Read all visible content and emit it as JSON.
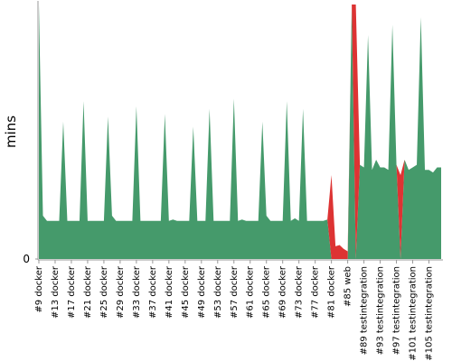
{
  "chart_data": {
    "type": "area",
    "stacked": true,
    "ylabel": "mins",
    "categories": [
      "#9 docker",
      null,
      null,
      null,
      "#13 docker",
      null,
      null,
      null,
      "#17 docker",
      null,
      null,
      null,
      "#21 docker",
      null,
      null,
      null,
      "#25 docker",
      null,
      null,
      null,
      "#29 docker",
      null,
      null,
      null,
      "#33 docker",
      null,
      null,
      null,
      "#37 docker",
      null,
      null,
      null,
      "#41 docker",
      null,
      null,
      null,
      "#45 docker",
      null,
      null,
      null,
      "#49 docker",
      null,
      null,
      null,
      "#53 docker",
      null,
      null,
      null,
      "#57 docker",
      null,
      null,
      null,
      "#61 docker",
      null,
      null,
      null,
      "#65 docker",
      null,
      null,
      null,
      "#69 docker",
      null,
      null,
      null,
      "#73 docker",
      null,
      null,
      null,
      "#77 docker",
      null,
      null,
      null,
      "#81 docker",
      null,
      null,
      null,
      "#85 web",
      null,
      null,
      null,
      "#89 testintegration",
      null,
      null,
      null,
      "#93 testintegration",
      null,
      null,
      null,
      "#97 testintegration",
      null,
      null,
      null,
      "#101 testintegration",
      null,
      null,
      null,
      "#105 testintegration",
      null,
      null,
      null
    ],
    "series": [
      {
        "color": "#459a6b",
        "values": [
          10,
          1.7,
          1.5,
          1.5,
          1.5,
          1.5,
          5.4,
          1.5,
          1.5,
          1.5,
          1.5,
          6.2,
          1.5,
          1.5,
          1.5,
          1.5,
          1.5,
          5.6,
          1.7,
          1.5,
          1.5,
          1.5,
          1.5,
          1.5,
          6.0,
          1.5,
          1.5,
          1.5,
          1.5,
          1.5,
          1.5,
          5.7,
          1.5,
          1.55,
          1.5,
          1.5,
          1.5,
          1.5,
          5.2,
          1.5,
          1.5,
          1.5,
          5.9,
          1.5,
          1.5,
          1.5,
          1.5,
          1.5,
          6.3,
          1.5,
          1.55,
          1.5,
          1.5,
          1.5,
          1.5,
          5.4,
          1.7,
          1.5,
          1.5,
          1.5,
          1.5,
          6.2,
          1.5,
          1.6,
          1.5,
          5.9,
          1.5,
          1.5,
          1.5,
          1.5,
          1.5,
          1.55,
          0,
          0,
          0,
          0,
          0,
          10,
          0,
          3.7,
          3.6,
          8.8,
          3.5,
          3.9,
          3.6,
          3.6,
          3.5,
          9.2,
          3.7,
          0,
          3.9,
          3.5,
          3.6,
          3.7,
          9.5,
          3.5,
          3.5,
          3.4,
          3.6,
          3.6
        ]
      },
      {
        "color": "#dd3333",
        "values": [
          0,
          0,
          0,
          0,
          0,
          0,
          0,
          0,
          0,
          0,
          0,
          0,
          0,
          0,
          0,
          0,
          0,
          0,
          0,
          0,
          0,
          0,
          0,
          0,
          0,
          0,
          0,
          0,
          0,
          0,
          0,
          0,
          0,
          0,
          0,
          0,
          0,
          0,
          0,
          0,
          0,
          0,
          0,
          0,
          0,
          0,
          0,
          0,
          0,
          0,
          0,
          0,
          0,
          0,
          0,
          0,
          0,
          0,
          0,
          0,
          0,
          0,
          0,
          0,
          0,
          0,
          0,
          0,
          0,
          0,
          0,
          0,
          3.3,
          0.5,
          0.55,
          0.4,
          0.3,
          0,
          10,
          0,
          0,
          0,
          0,
          0,
          0,
          0,
          0,
          0,
          0,
          3.3,
          0,
          0,
          0,
          0,
          0,
          0,
          0,
          0,
          0,
          0
        ]
      }
    ],
    "ylim": [
      0,
      10
    ],
    "yticks": [
      0
    ],
    "grid": false
  }
}
